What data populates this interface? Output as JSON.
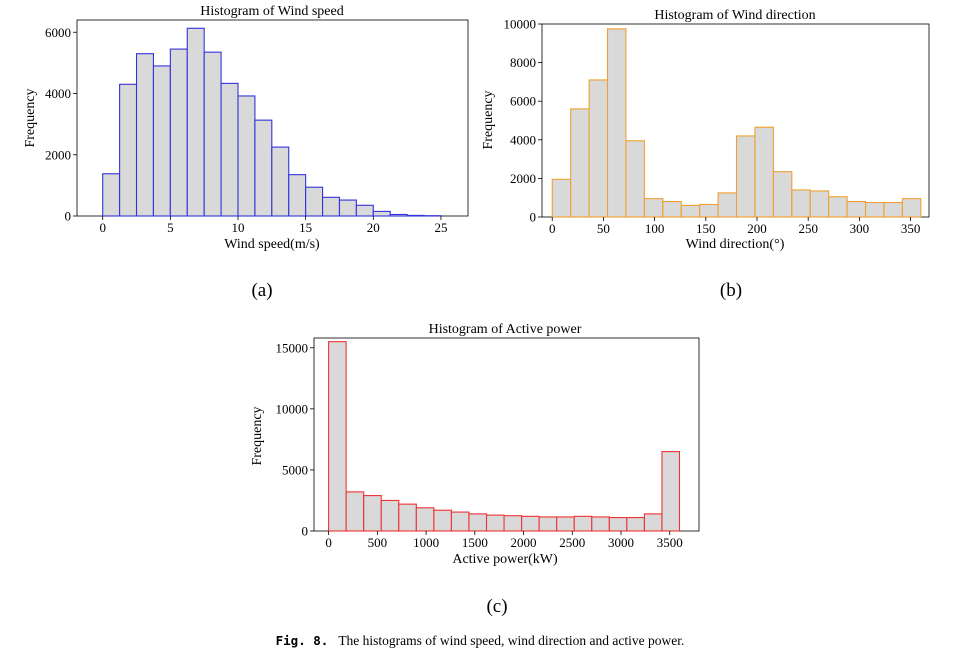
{
  "chart_data": [
    {
      "id": "a",
      "type": "bar",
      "title": "Histogram of Wind speed",
      "xlabel": "Wind speed(m/s)",
      "ylabel": "Frequency",
      "panel_label": "(a)",
      "bar_color": "#3333dd",
      "bar_fill": "#d9d9d9",
      "xlim": [
        -1.9,
        27.0
      ],
      "ylim": [
        0,
        6400
      ],
      "xticks": [
        0,
        5,
        10,
        15,
        20,
        25
      ],
      "yticks": [
        0,
        2000,
        4000,
        6000
      ],
      "bin_edges": [
        0,
        1.25,
        2.5,
        3.75,
        5,
        6.25,
        7.5,
        8.75,
        10,
        11.25,
        12.5,
        13.75,
        15,
        16.25,
        17.5,
        18.75,
        20,
        21.25,
        22.5,
        23.75,
        25
      ],
      "values": [
        1380,
        4300,
        5300,
        4900,
        5450,
        6130,
        5350,
        4330,
        3920,
        3130,
        2250,
        1350,
        940,
        610,
        520,
        350,
        150,
        50,
        20,
        10
      ]
    },
    {
      "id": "b",
      "type": "bar",
      "title": "Histogram of Wind direction",
      "xlabel": "Wind direction(°)",
      "ylabel": "Frequency",
      "panel_label": "(b)",
      "bar_color": "#f0a030",
      "bar_fill": "#d9d9d9",
      "xlim": [
        -10,
        368
      ],
      "ylim": [
        0,
        10000
      ],
      "xticks": [
        0,
        50,
        100,
        150,
        200,
        250,
        300,
        350
      ],
      "yticks": [
        0,
        2000,
        4000,
        6000,
        8000,
        10000
      ],
      "bin_edges": [
        0,
        18,
        36,
        54,
        72,
        90,
        108,
        126,
        144,
        162,
        180,
        198,
        216,
        234,
        252,
        270,
        288,
        306,
        324,
        342,
        360
      ],
      "values": [
        1950,
        5600,
        7100,
        9750,
        3950,
        950,
        800,
        600,
        650,
        1250,
        4200,
        4650,
        2350,
        1400,
        1350,
        1050,
        800,
        750,
        750,
        950
      ]
    },
    {
      "id": "c",
      "type": "bar",
      "title": "Histogram of Active power",
      "xlabel": "Active power(kW)",
      "ylabel": "Frequency",
      "panel_label": "(c)",
      "bar_color": "#ee3333",
      "bar_fill": "#d9d9d9",
      "xlim": [
        -150,
        3800
      ],
      "ylim": [
        0,
        15800
      ],
      "xticks": [
        0,
        500,
        1000,
        1500,
        2000,
        2500,
        3000,
        3500
      ],
      "yticks": [
        0,
        5000,
        10000,
        15000
      ],
      "bin_edges": [
        0,
        180,
        360,
        540,
        720,
        900,
        1080,
        1260,
        1440,
        1620,
        1800,
        1980,
        2160,
        2340,
        2520,
        2700,
        2880,
        3060,
        3240,
        3420,
        3600
      ],
      "values": [
        15500,
        3200,
        2900,
        2500,
        2200,
        1900,
        1700,
        1550,
        1400,
        1300,
        1250,
        1200,
        1150,
        1150,
        1200,
        1150,
        1100,
        1100,
        1400,
        6500
      ]
    }
  ],
  "caption": {
    "label": "Fig. 8.",
    "text": "The histograms of wind speed, wind direction and active power."
  }
}
